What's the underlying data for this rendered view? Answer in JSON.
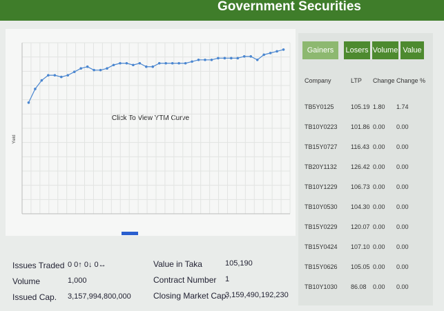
{
  "header": {
    "title": "Government Securities"
  },
  "tabs": [
    "Gainers",
    "Losers",
    "Volume",
    "Value"
  ],
  "chart_data": {
    "type": "line",
    "annotation": "Click To View YTM Curve",
    "y_label": "Yield",
    "x": [
      1,
      2,
      3,
      4,
      5,
      6,
      7,
      8,
      9,
      10,
      11,
      12,
      13,
      14,
      15,
      16,
      17,
      18,
      19,
      20,
      21,
      22,
      23,
      24,
      25,
      26,
      27,
      28,
      29,
      30,
      31,
      32,
      33,
      34,
      35,
      36,
      37,
      38,
      39,
      40
    ],
    "series": [
      {
        "color": "#4a86d0",
        "values": [
          6.5,
          7.3,
          7.8,
          8.1,
          8.1,
          8.0,
          8.1,
          8.3,
          8.5,
          8.6,
          8.4,
          8.4,
          8.5,
          8.7,
          8.8,
          8.8,
          8.7,
          8.8,
          8.6,
          8.6,
          8.8,
          8.8,
          8.8,
          8.8,
          8.8,
          8.9,
          9.0,
          9.0,
          9.0,
          9.1,
          9.1,
          9.1,
          9.1,
          9.2,
          9.2,
          9.0,
          9.3,
          9.4,
          9.5,
          9.6
        ]
      }
    ],
    "xlim": [
      0,
      41
    ],
    "ylim": [
      0,
      10
    ],
    "grid": true
  },
  "table": {
    "columns": [
      "Company",
      "LTP",
      "Change",
      "Change %"
    ],
    "rows": [
      [
        "TB5Y0125",
        "105.19",
        "1.80",
        "1.74"
      ],
      [
        "TB10Y0223",
        "101.86",
        "0.00",
        "0.00"
      ],
      [
        "TB15Y0727",
        "116.43",
        "0.00",
        "0.00"
      ],
      [
        "TB20Y1132",
        "126.42",
        "0.00",
        "0.00"
      ],
      [
        "TB10Y1229",
        "106.73",
        "0.00",
        "0.00"
      ],
      [
        "TB10Y0530",
        "104.30",
        "0.00",
        "0.00"
      ],
      [
        "TB15Y0229",
        "120.07",
        "0.00",
        "0.00"
      ],
      [
        "TB15Y0424",
        "107.10",
        "0.00",
        "0.00"
      ],
      [
        "TB15Y0626",
        "105.05",
        "0.00",
        "0.00"
      ],
      [
        "TB10Y1030",
        "86.08",
        "0.00",
        "0.00"
      ]
    ]
  },
  "stats": [
    {
      "label": "Issues Traded",
      "value": "0 0↑ 0↓ 0↔"
    },
    {
      "label": "Volume",
      "value": "1,000"
    },
    {
      "label": "Issued Cap.",
      "value": "3,157,994,800,000"
    },
    {
      "label": "Value in Taka",
      "value": "105,190"
    },
    {
      "label": "Contract Number",
      "value": "1"
    },
    {
      "label": "Closing Market Cap.",
      "value": "3,159,490,192,230"
    }
  ]
}
